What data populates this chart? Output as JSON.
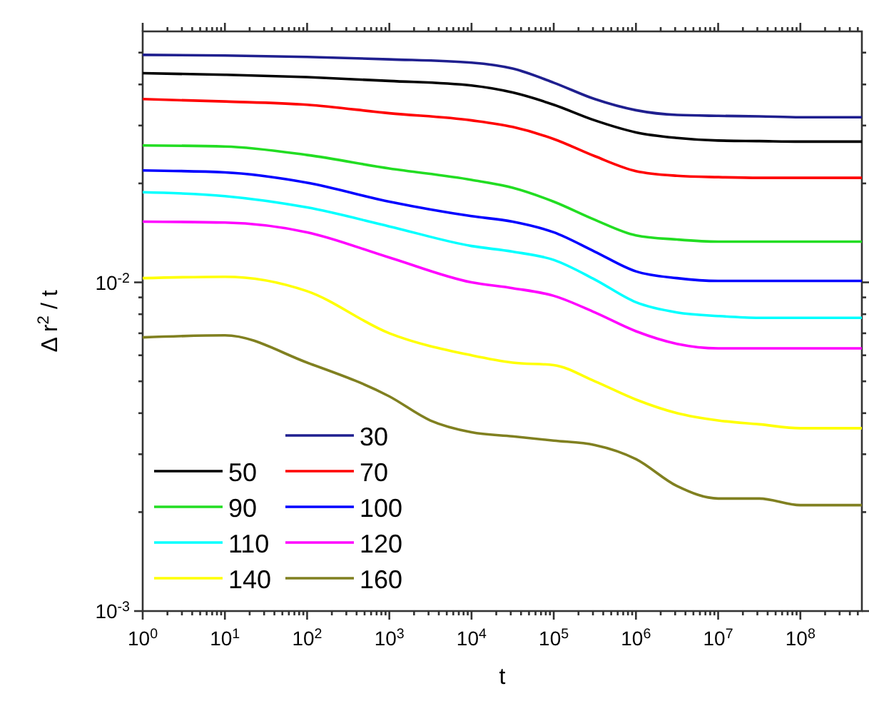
{
  "chart_data": {
    "type": "line",
    "xlabel": "t",
    "ylabel": "Δ r$^{2}$ / t",
    "log": "xy",
    "grid": false,
    "legend": "bottom left",
    "line_style": "solid",
    "marker": "none",
    "xlim": [
      1,
      560000000.0
    ],
    "ylim": [
      0.001,
      0.058
    ],
    "xticks": [
      {
        "value": 1,
        "label": "10$^{0}$"
      },
      {
        "value": 10,
        "label": "10$^{1}$"
      },
      {
        "value": 100,
        "label": "10$^{2}$"
      },
      {
        "value": 1000,
        "label": "10$^{3}$"
      },
      {
        "value": 10000.0,
        "label": "10$^{4}$"
      },
      {
        "value": 100000.0,
        "label": "10$^{5}$"
      },
      {
        "value": 1000000.0,
        "label": "10$^{6}$"
      },
      {
        "value": 10000000.0,
        "label": "10$^{7}$"
      },
      {
        "value": 100000000.0,
        "label": "10$^{8}$"
      },
      {
        "value": 2,
        "label": null
      },
      {
        "value": 3,
        "label": null
      },
      {
        "value": 4,
        "label": null
      },
      {
        "value": 5,
        "label": null
      },
      {
        "value": 6,
        "label": null
      },
      {
        "value": 7,
        "label": null
      },
      {
        "value": 8,
        "label": null
      },
      {
        "value": 9,
        "label": null
      },
      {
        "value": 20,
        "label": null
      },
      {
        "value": 30,
        "label": null
      },
      {
        "value": 40,
        "label": null
      },
      {
        "value": 50,
        "label": null
      },
      {
        "value": 60,
        "label": null
      },
      {
        "value": 70,
        "label": null
      },
      {
        "value": 80,
        "label": null
      },
      {
        "value": 90,
        "label": null
      },
      {
        "value": 200,
        "label": null
      },
      {
        "value": 300,
        "label": null
      },
      {
        "value": 400,
        "label": null
      },
      {
        "value": 500,
        "label": null
      },
      {
        "value": 600,
        "label": null
      },
      {
        "value": 700,
        "label": null
      },
      {
        "value": 800,
        "label": null
      },
      {
        "value": 900,
        "label": null
      },
      {
        "value": 2000.0,
        "label": null
      },
      {
        "value": 3000.0,
        "label": null
      },
      {
        "value": 4000.0,
        "label": null
      },
      {
        "value": 5000.0,
        "label": null
      },
      {
        "value": 6000.0,
        "label": null
      },
      {
        "value": 7000.0,
        "label": null
      },
      {
        "value": 8000.0,
        "label": null
      },
      {
        "value": 9000.0,
        "label": null
      },
      {
        "value": 20000.0,
        "label": null
      },
      {
        "value": 30000.0,
        "label": null
      },
      {
        "value": 40000.0,
        "label": null
      },
      {
        "value": 50000.0,
        "label": null
      },
      {
        "value": 60000.0,
        "label": null
      },
      {
        "value": 70000.0,
        "label": null
      },
      {
        "value": 80000.0,
        "label": null
      },
      {
        "value": 90000.0,
        "label": null
      },
      {
        "value": 200000.0,
        "label": null
      },
      {
        "value": 300000.0,
        "label": null
      },
      {
        "value": 400000.0,
        "label": null
      },
      {
        "value": 500000.0,
        "label": null
      },
      {
        "value": 600000.0,
        "label": null
      },
      {
        "value": 700000.0,
        "label": null
      },
      {
        "value": 800000.0,
        "label": null
      },
      {
        "value": 900000.0,
        "label": null
      },
      {
        "value": 2000000.0,
        "label": null
      },
      {
        "value": 3000000.0,
        "label": null
      },
      {
        "value": 4000000.0,
        "label": null
      },
      {
        "value": 5000000.0,
        "label": null
      },
      {
        "value": 6000000.0,
        "label": null
      },
      {
        "value": 7000000.0,
        "label": null
      },
      {
        "value": 8000000.0,
        "label": null
      },
      {
        "value": 9000000.0,
        "label": null
      },
      {
        "value": 20000000.0,
        "label": null
      },
      {
        "value": 30000000.0,
        "label": null
      },
      {
        "value": 40000000.0,
        "label": null
      },
      {
        "value": 50000000.0,
        "label": null
      },
      {
        "value": 60000000.0,
        "label": null
      },
      {
        "value": 70000000.0,
        "label": null
      },
      {
        "value": 80000000.0,
        "label": null
      },
      {
        "value": 90000000.0,
        "label": null
      },
      {
        "value": 200000000.0,
        "label": null
      },
      {
        "value": 300000000.0,
        "label": null
      },
      {
        "value": 400000000.0,
        "label": null
      },
      {
        "value": 500000000.0,
        "label": null
      }
    ],
    "yticks": [
      {
        "value": 0.001,
        "label": "10$^{-3}$"
      },
      {
        "value": 0.01,
        "label": "10$^{-2}$"
      },
      {
        "value": 0.002,
        "label": null
      },
      {
        "value": 0.003,
        "label": null
      },
      {
        "value": 0.004,
        "label": null
      },
      {
        "value": 0.005,
        "label": null
      },
      {
        "value": 0.006,
        "label": null
      },
      {
        "value": 0.007,
        "label": null
      },
      {
        "value": 0.008,
        "label": null
      },
      {
        "value": 0.009,
        "label": null
      },
      {
        "value": 0.02,
        "label": null
      },
      {
        "value": 0.03,
        "label": null
      },
      {
        "value": 0.04,
        "label": null
      },
      {
        "value": 0.05,
        "label": null
      }
    ],
    "x": [
      1,
      10,
      100,
      1000,
      10000.0,
      31623,
      100000.0,
      316228,
      1000000.0,
      3162278,
      10000000.0,
      31622777,
      100000000.0,
      560000000.0
    ],
    "series": [
      {
        "name": "30",
        "color": "#1f1f8f",
        "values": [
          0.0492,
          0.049,
          0.0485,
          0.0477,
          0.0466,
          0.0447,
          0.0405,
          0.0361,
          0.0334,
          0.0323,
          0.0321,
          0.032,
          0.0318,
          0.0318
        ]
      },
      {
        "name": "50",
        "color": "#000000",
        "values": [
          0.0433,
          0.0428,
          0.0421,
          0.041,
          0.0397,
          0.0378,
          0.0347,
          0.0311,
          0.0286,
          0.0275,
          0.027,
          0.0269,
          0.0268,
          0.0268
        ]
      },
      {
        "name": "70",
        "color": "#ff0000",
        "values": [
          0.0361,
          0.0355,
          0.0347,
          0.0327,
          0.0311,
          0.0297,
          0.0273,
          0.0242,
          0.0218,
          0.0211,
          0.0209,
          0.0208,
          0.0208,
          0.0208
        ]
      },
      {
        "name": "90",
        "color": "#22dd22",
        "values": [
          0.0261,
          0.0259,
          0.0244,
          0.0222,
          0.0205,
          0.0194,
          0.0176,
          0.0155,
          0.0139,
          0.0135,
          0.0133,
          0.0133,
          0.0133,
          0.0133
        ]
      },
      {
        "name": "100",
        "color": "#0000ff",
        "values": [
          0.0219,
          0.0216,
          0.0201,
          0.0176,
          0.0159,
          0.0153,
          0.0142,
          0.0124,
          0.0108,
          0.0103,
          0.0101,
          0.0101,
          0.0101,
          0.0101
        ]
      },
      {
        "name": "110",
        "color": "#00ffff",
        "values": [
          0.0188,
          0.0183,
          0.0169,
          0.0148,
          0.0129,
          0.0124,
          0.0117,
          0.0102,
          0.0087,
          0.0081,
          0.0079,
          0.0078,
          0.0078,
          0.0078
        ]
      },
      {
        "name": "120",
        "color": "#ff00ff",
        "values": [
          0.0153,
          0.0152,
          0.0142,
          0.0119,
          0.01,
          0.0096,
          0.0091,
          0.0081,
          0.0071,
          0.0065,
          0.0063,
          0.0063,
          0.0063,
          0.0063
        ]
      },
      {
        "name": "140",
        "color": "#ffff00",
        "values": [
          0.0103,
          0.0104,
          0.0094,
          0.007,
          0.006,
          0.0057,
          0.0056,
          0.005,
          0.0044,
          0.004,
          0.0038,
          0.0037,
          0.0036,
          0.0036
        ]
      },
      {
        "name": "160",
        "color": "#808020",
        "x": [
          1,
          10,
          100,
          1000,
          3162,
          10000.0,
          31623,
          100000.0,
          316228,
          1000000.0,
          3162278,
          10000000.0,
          31622777,
          100000000.0,
          560000000.0
        ],
        "values": [
          0.0068,
          0.0069,
          0.0057,
          0.0045,
          0.0038,
          0.0035,
          0.0034,
          0.0033,
          0.0032,
          0.0029,
          0.0024,
          0.0022,
          0.0022,
          0.0021,
          0.0021
        ]
      }
    ]
  }
}
